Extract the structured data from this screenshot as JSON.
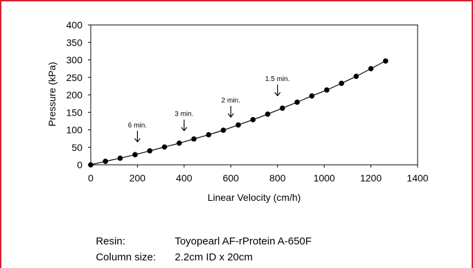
{
  "frame_color": "#d2202f",
  "chart_data": {
    "type": "scatter",
    "xlabel": "Linear Velocity (cm/h)",
    "ylabel": "Pressure (kPa)",
    "xlim": [
      0,
      1400
    ],
    "ylim": [
      0,
      400
    ],
    "xticks": [
      0,
      200,
      400,
      600,
      800,
      1000,
      1200,
      1400
    ],
    "yticks": [
      0,
      50,
      100,
      150,
      200,
      250,
      300,
      350,
      400
    ],
    "grid": false,
    "legend": "none",
    "series": [
      {
        "marker": "circle",
        "line": "smooth",
        "color": "#000000",
        "x": [
          0,
          63,
          126,
          190,
          253,
          316,
          379,
          442,
          505,
          568,
          632,
          695,
          758,
          821,
          884,
          947,
          1011,
          1074,
          1137,
          1200,
          1263
        ],
        "y": [
          0,
          10,
          19,
          29,
          40,
          51,
          62,
          74,
          86,
          99,
          114,
          129,
          145,
          162,
          179,
          197,
          214,
          233,
          253,
          275,
          297
        ]
      }
    ],
    "annotations": [
      {
        "text": "6 min.",
        "x": 200,
        "y": 30
      },
      {
        "text": "3 min.",
        "x": 400,
        "y": 62
      },
      {
        "text": "2 min.",
        "x": 600,
        "y": 101
      },
      {
        "text": "1.5 min.",
        "x": 800,
        "y": 162
      }
    ]
  },
  "notes": [
    {
      "label": "Resin:",
      "value": "Toyopearl AF-rProtein A-650F"
    },
    {
      "label": "Column size:",
      "value": "2.2cm ID x 20cm"
    }
  ]
}
